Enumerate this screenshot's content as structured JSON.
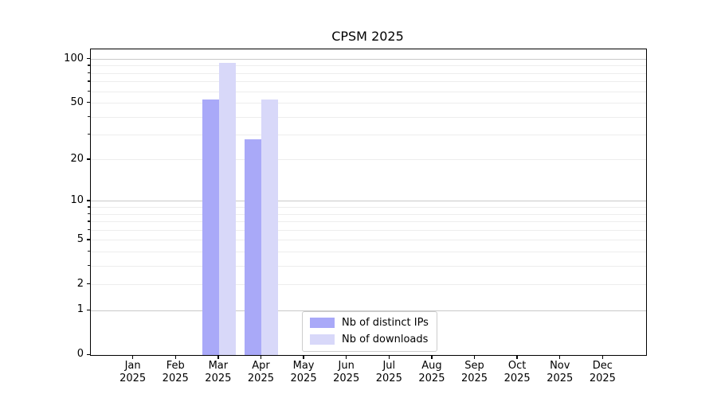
{
  "title": "CPSM 2025",
  "chart_data": {
    "type": "bar",
    "title": "CPSM 2025",
    "y_scale": "symlog (log1p)",
    "categories": [
      "Jan 2025",
      "Feb 2025",
      "Mar 2025",
      "Apr 2025",
      "May 2025",
      "Jun 2025",
      "Jul 2025",
      "Aug 2025",
      "Sep 2025",
      "Oct 2025",
      "Nov 2025",
      "Dec 2025"
    ],
    "x_tick_months": [
      "Jan",
      "Feb",
      "Mar",
      "Apr",
      "May",
      "Jun",
      "Jul",
      "Aug",
      "Sep",
      "Oct",
      "Nov",
      "Dec"
    ],
    "x_tick_year": "2025",
    "series": [
      {
        "name": "Nb of distinct IPs",
        "color": "#a9a9f8",
        "values": [
          0,
          0,
          53,
          28,
          0,
          0,
          0,
          0,
          0,
          0,
          0,
          0
        ]
      },
      {
        "name": "Nb of downloads",
        "color": "#d8d8f9",
        "values": [
          0,
          0,
          95,
          53,
          0,
          0,
          0,
          0,
          0,
          0,
          0,
          0
        ]
      }
    ],
    "y_ticks": [
      100,
      50,
      20,
      10,
      5,
      2,
      1,
      0
    ],
    "y_major_gridlines": [
      1,
      10,
      100
    ],
    "y_minor_gridlines": [
      2,
      3,
      4,
      5,
      6,
      7,
      8,
      9,
      20,
      30,
      40,
      50,
      60,
      70,
      80,
      90
    ],
    "ylim": [
      0,
      117
    ],
    "grid": true,
    "legend_position": "lower center",
    "colors": {
      "major_grid": "#c9c9c9",
      "minor_grid": "#ededed",
      "spine": "#000000",
      "text": "#000000",
      "background": "#ffffff"
    }
  },
  "legend": {
    "items": [
      {
        "label": "Nb of distinct IPs",
        "color": "#a9a9f8"
      },
      {
        "label": "Nb of downloads",
        "color": "#d8d8f9"
      }
    ]
  }
}
